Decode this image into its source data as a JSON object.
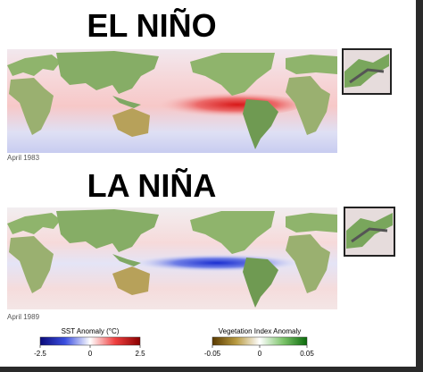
{
  "panels": [
    {
      "title": "EL NIÑO",
      "date": "April 1983"
    },
    {
      "title": "LA NIÑA",
      "date": "April 1989"
    }
  ],
  "legends": [
    {
      "title": "SST Anomaly (°C)",
      "ticks": [
        -2.5,
        0,
        2.5
      ]
    },
    {
      "title": "Vegetation Index Anomaly",
      "ticks": [
        -0.05,
        0,
        0.05
      ]
    }
  ]
}
